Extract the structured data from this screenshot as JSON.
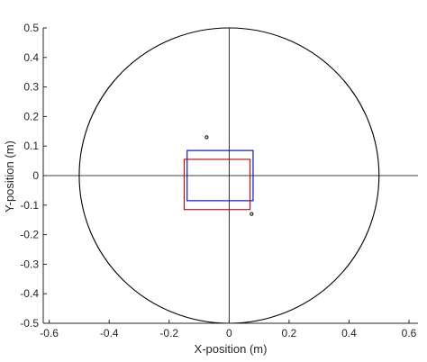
{
  "chart_data": {
    "type": "scatter",
    "xlabel": "X-position (m)",
    "ylabel": "Y-position (m)",
    "xlim": [
      -0.62,
      0.63
    ],
    "ylim": [
      -0.5,
      0.5
    ],
    "x_ticks": [
      -0.6,
      -0.4,
      -0.2,
      0,
      0.2,
      0.4,
      0.6
    ],
    "x_tick_labels": [
      "-0.6",
      "-0.4",
      "-0.2",
      "0",
      "0.2",
      "0.4",
      "0.6"
    ],
    "y_ticks": [
      0.5,
      0.4,
      0.3,
      0.2,
      0.1,
      0,
      -0.1,
      -0.2,
      -0.3,
      -0.4,
      -0.5
    ],
    "y_tick_labels": [
      "0.5",
      "0.4",
      "0.3",
      "0.2",
      "0.1",
      "0",
      "-0.1",
      "-0.2",
      "-0.3",
      "-0.4",
      "-0.5"
    ],
    "grid": false,
    "circle": {
      "center": [
        0,
        0
      ],
      "radius": 0.5,
      "color": "#000000"
    },
    "crosshair": {
      "x": 0,
      "y": 0,
      "color": "#000000"
    },
    "rectangles": [
      {
        "x_min": -0.14,
        "x_max": 0.08,
        "y_min": -0.085,
        "y_max": 0.085,
        "color": "#0000bf"
      },
      {
        "x_min": -0.15,
        "x_max": 0.07,
        "y_min": -0.115,
        "y_max": 0.055,
        "color": "#bf0000"
      }
    ],
    "points": [
      {
        "x": -0.075,
        "y": 0.13
      },
      {
        "x": 0.075,
        "y": -0.13
      }
    ]
  }
}
